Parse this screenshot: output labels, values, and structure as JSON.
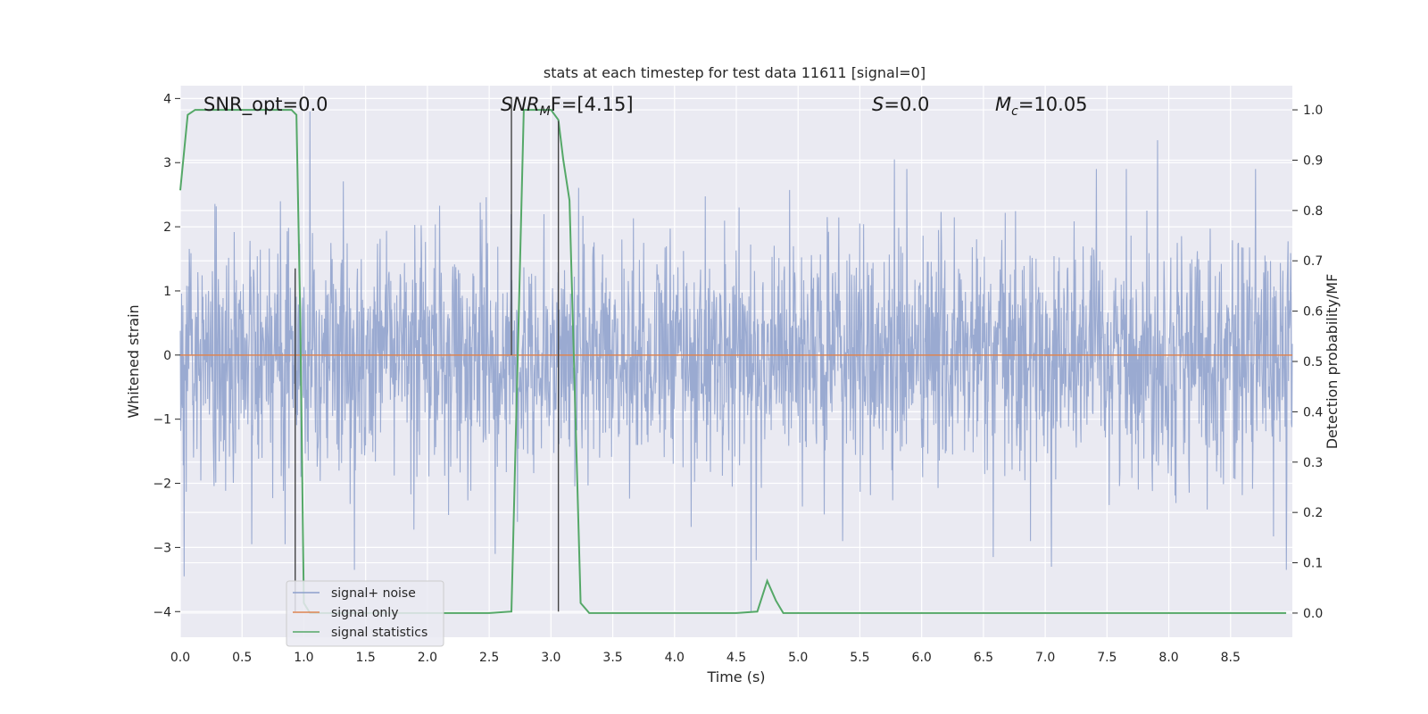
{
  "chart_data": {
    "type": "line",
    "title": "stats at each timestep for test data 11611 [signal=0]",
    "xlabel": "Time (s)",
    "ylabel_left": "Whitened strain",
    "ylabel_right": "Detection probability/MF",
    "xlim": [
      0.0,
      9.0
    ],
    "ylim_left": [
      -4.4,
      4.2
    ],
    "ylim_right": [
      -0.048,
      1.048
    ],
    "x_ticks": [
      "0.0",
      "0.5",
      "1.0",
      "1.5",
      "2.0",
      "2.5",
      "3.0",
      "3.5",
      "4.0",
      "4.5",
      "5.0",
      "5.5",
      "6.0",
      "6.5",
      "7.0",
      "7.5",
      "8.0",
      "8.5"
    ],
    "y_ticks_left": [
      "−4",
      "−3",
      "−2",
      "−1",
      "0",
      "1",
      "2",
      "3",
      "4"
    ],
    "y_ticks_right": [
      "0.0",
      "0.1",
      "0.2",
      "0.3",
      "0.4",
      "0.5",
      "0.6",
      "0.7",
      "0.8",
      "0.9",
      "1.0"
    ],
    "grid": true,
    "legend_position": "lower-left",
    "annotations": {
      "snr_opt": "SNR_opt=0.0",
      "snr_mf_base": "SNR",
      "snr_mf_sub": "M",
      "snr_mf_rest": "F=[4.15]",
      "s_base": "S",
      "s_rest": "=0.0",
      "mc_base": "M",
      "mc_sub": "c",
      "mc_rest": "=10.05"
    },
    "series": [
      {
        "name": "signal+ noise",
        "axis": "left",
        "color": "#8c9fcb",
        "style": "noise",
        "x_range": [
          0.0,
          9.0
        ],
        "typical_envelope": [
          -2.0,
          2.5
        ],
        "extreme_values": [
          {
            "x": 0.03,
            "y": -3.45
          },
          {
            "x": 0.58,
            "y": -2.95
          },
          {
            "x": 0.85,
            "y": -2.95
          },
          {
            "x": 1.05,
            "y": 3.8
          },
          {
            "x": 1.41,
            "y": -3.35
          },
          {
            "x": 2.55,
            "y": -3.1
          },
          {
            "x": 4.62,
            "y": -4.0
          },
          {
            "x": 4.66,
            "y": -3.2
          },
          {
            "x": 5.78,
            "y": 3.05
          },
          {
            "x": 6.58,
            "y": -3.15
          },
          {
            "x": 7.05,
            "y": -3.3
          },
          {
            "x": 7.91,
            "y": 3.35
          },
          {
            "x": 8.95,
            "y": -3.35
          }
        ]
      },
      {
        "name": "signal only",
        "axis": "left",
        "color": "#dd8452",
        "x": [
          0.0,
          9.0
        ],
        "y": [
          0.0,
          0.0
        ]
      },
      {
        "name": "signal statistics",
        "axis": "right",
        "color": "#55a868",
        "x": [
          0.0,
          0.06,
          0.12,
          0.4,
          0.8,
          0.9,
          0.94,
          0.97,
          1.0,
          1.05,
          1.2,
          2.0,
          2.5,
          2.68,
          2.72,
          2.78,
          2.86,
          3.0,
          3.06,
          3.1,
          3.15,
          3.24,
          3.31,
          3.5,
          4.0,
          4.5,
          4.67,
          4.75,
          4.82,
          4.88,
          5.0,
          6.0,
          7.0,
          8.0,
          8.95
        ],
        "y": [
          0.84,
          0.99,
          1.0,
          1.0,
          1.0,
          1.0,
          0.99,
          0.6,
          0.02,
          0.0,
          0.0,
          0.0,
          0.0,
          0.003,
          0.4,
          1.0,
          1.0,
          1.0,
          0.98,
          0.9,
          0.82,
          0.02,
          0.0,
          0.0,
          0.0,
          0.0,
          0.003,
          0.064,
          0.025,
          0.0,
          0.0,
          0.0,
          0.0,
          0.0,
          0.0
        ]
      }
    ],
    "vertical_markers": [
      {
        "x": 0.93,
        "y_from": -4.0,
        "y_to": 1.35
      },
      {
        "x": 2.68,
        "y_from": 0.0,
        "y_to": 4.0
      },
      {
        "x": 3.06,
        "y_from": -4.0,
        "y_to": 3.65
      }
    ]
  }
}
